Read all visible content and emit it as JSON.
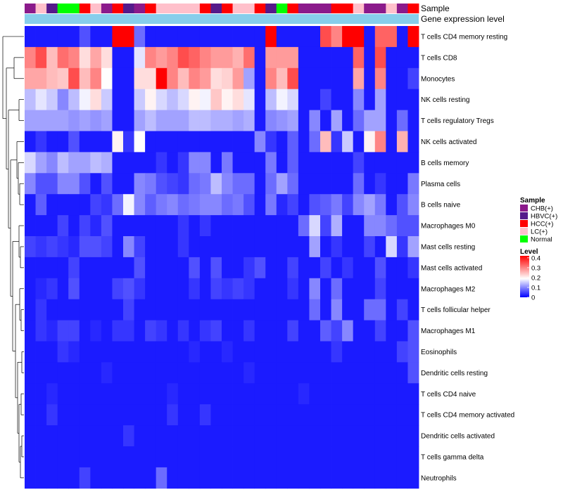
{
  "chart_data": {
    "type": "heatmap",
    "title": "",
    "annotation_rows": [
      "Sample",
      "Gene expression level"
    ],
    "rows": [
      "T cells CD4 memory resting",
      "T cells CD8",
      "Monocytes",
      "NK cells resting",
      "T cells regulatory  Tregs",
      "NK cells activated",
      "B cells memory",
      "Plasma cells",
      "B cells naive",
      "Macrophages M0",
      "Mast cells resting",
      "Mast cells activated",
      "Macrophages M2",
      "T cells follicular helper",
      "Macrophages M1",
      "Eosinophils",
      "Dendritic cells resting",
      "T cells CD4 naive",
      "T cells CD4 memory activated",
      "Dendritic cells activated",
      "T cells gamma delta",
      "Neutrophils"
    ],
    "sample_groups": [
      "CHB(+)",
      "LC(+)",
      "HBVC(+)",
      "Normal",
      "Normal",
      "HCC(+)",
      "LC(+)",
      "CHB(+)",
      "HCC(+)",
      "HBVC(+)",
      "CHB(+)",
      "HCC(+)",
      "LC(+)",
      "LC(+)",
      "LC(+)",
      "LC(+)",
      "HCC(+)",
      "HBVC(+)",
      "HCC(+)",
      "LC(+)",
      "LC(+)",
      "HCC(+)",
      "HBVC(+)",
      "Normal",
      "HCC(+)",
      "CHB(+)",
      "CHB(+)",
      "CHB(+)",
      "HCC(+)",
      "HCC(+)",
      "LC(+)",
      "CHB(+)",
      "CHB(+)",
      "LC(+)",
      "CHB(+)",
      "HCC(+)"
    ],
    "gene_expression_level": "uniform",
    "legend": {
      "sample_title": "Sample",
      "sample_entries": [
        {
          "label": "CHB(+)",
          "color": "#8B1A8B"
        },
        {
          "label": "HBVC(+)",
          "color": "#551A8B"
        },
        {
          "label": "HCC(+)",
          "color": "#FF0000"
        },
        {
          "label": "LC(+)",
          "color": "#FFC0CB"
        },
        {
          "label": "Normal",
          "color": "#00FF00"
        }
      ],
      "level_title": "Level",
      "level_ticks": [
        0.4,
        0.3,
        0.2,
        0.1,
        0
      ],
      "level_range": [
        0,
        0.42
      ]
    },
    "colors": {
      "low": "#0000FF",
      "mid": "#FFFFFF",
      "high": "#FF0000",
      "gene_bar": "#87CEEB",
      "dendrogram": "#000000"
    },
    "values": [
      [
        0.02,
        0.02,
        0.02,
        0.02,
        0.02,
        0.06,
        0.02,
        0.02,
        0.42,
        0.42,
        0.08,
        0.02,
        0.02,
        0.02,
        0.02,
        0.02,
        0.02,
        0.02,
        0.02,
        0.02,
        0.02,
        0.02,
        0.42,
        0.02,
        0.02,
        0.02,
        0.02,
        0.35,
        0.3,
        0.42,
        0.42,
        0.02,
        0.33,
        0.33,
        0.02,
        0.42
      ],
      [
        0.3,
        0.35,
        0.25,
        0.32,
        0.3,
        0.22,
        0.27,
        0.22,
        0.02,
        0.02,
        0.17,
        0.3,
        0.28,
        0.3,
        0.35,
        0.33,
        0.3,
        0.28,
        0.28,
        0.26,
        0.32,
        0.02,
        0.28,
        0.28,
        0.28,
        0.02,
        0.02,
        0.02,
        0.02,
        0.02,
        0.33,
        0.02,
        0.35,
        0.02,
        0.02,
        0.02
      ],
      [
        0.27,
        0.27,
        0.25,
        0.24,
        0.35,
        0.25,
        0.3,
        0.19,
        0.02,
        0.02,
        0.22,
        0.22,
        0.42,
        0.3,
        0.25,
        0.3,
        0.28,
        0.22,
        0.23,
        0.28,
        0.12,
        0.02,
        0.3,
        0.25,
        0.35,
        0.02,
        0.02,
        0.02,
        0.02,
        0.02,
        0.27,
        0.02,
        0.3,
        0.02,
        0.02,
        0.05
      ],
      [
        0.14,
        0.17,
        0.15,
        0.1,
        0.14,
        0.18,
        0.22,
        0.15,
        0.02,
        0.02,
        0.15,
        0.2,
        0.16,
        0.14,
        0.16,
        0.2,
        0.18,
        0.24,
        0.2,
        0.22,
        0.17,
        0.02,
        0.14,
        0.18,
        0.16,
        0.02,
        0.02,
        0.05,
        0.02,
        0.02,
        0.1,
        0.02,
        0.12,
        0.02,
        0.02,
        0.02
      ],
      [
        0.12,
        0.12,
        0.12,
        0.12,
        0.11,
        0.12,
        0.11,
        0.12,
        0.02,
        0.02,
        0.12,
        0.14,
        0.12,
        0.12,
        0.12,
        0.14,
        0.14,
        0.13,
        0.13,
        0.12,
        0.13,
        0.02,
        0.1,
        0.11,
        0.12,
        0.02,
        0.1,
        0.02,
        0.12,
        0.02,
        0.08,
        0.12,
        0.12,
        0.02,
        0.08,
        0.02
      ],
      [
        0.02,
        0.04,
        0.02,
        0.02,
        0.06,
        0.02,
        0.02,
        0.02,
        0.2,
        0.04,
        0.19,
        0.02,
        0.02,
        0.02,
        0.02,
        0.02,
        0.02,
        0.02,
        0.02,
        0.02,
        0.02,
        0.1,
        0.04,
        0.02,
        0.07,
        0.02,
        0.08,
        0.25,
        0.04,
        0.15,
        0.02,
        0.2,
        0.3,
        0.02,
        0.26,
        0.02
      ],
      [
        0.16,
        0.12,
        0.1,
        0.14,
        0.12,
        0.12,
        0.14,
        0.13,
        0.02,
        0.02,
        0.02,
        0.02,
        0.04,
        0.02,
        0.04,
        0.1,
        0.1,
        0.02,
        0.09,
        0.02,
        0.02,
        0.02,
        0.09,
        0.02,
        0.07,
        0.02,
        0.02,
        0.02,
        0.02,
        0.02,
        0.05,
        0.02,
        0.02,
        0.02,
        0.02,
        0.02
      ],
      [
        0.1,
        0.06,
        0.06,
        0.1,
        0.1,
        0.06,
        0.02,
        0.06,
        0.02,
        0.02,
        0.1,
        0.09,
        0.06,
        0.05,
        0.04,
        0.08,
        0.09,
        0.14,
        0.1,
        0.08,
        0.08,
        0.02,
        0.08,
        0.12,
        0.08,
        0.02,
        0.02,
        0.02,
        0.02,
        0.02,
        0.08,
        0.02,
        0.04,
        0.02,
        0.02,
        0.09
      ],
      [
        0.02,
        0.07,
        0.02,
        0.02,
        0.02,
        0.02,
        0.05,
        0.04,
        0.08,
        0.18,
        0.1,
        0.07,
        0.09,
        0.1,
        0.08,
        0.09,
        0.1,
        0.1,
        0.08,
        0.09,
        0.06,
        0.02,
        0.09,
        0.03,
        0.05,
        0.02,
        0.06,
        0.07,
        0.09,
        0.05,
        0.1,
        0.12,
        0.09,
        0.02,
        0.06,
        0.1
      ],
      [
        0.02,
        0.02,
        0.02,
        0.05,
        0.02,
        0.05,
        0.03,
        0.06,
        0.02,
        0.02,
        0.02,
        0.02,
        0.02,
        0.02,
        0.04,
        0.02,
        0.04,
        0.02,
        0.02,
        0.02,
        0.02,
        0.02,
        0.02,
        0.02,
        0.02,
        0.08,
        0.16,
        0.05,
        0.13,
        0.02,
        0.02,
        0.1,
        0.1,
        0.08,
        0.06,
        0.06
      ],
      [
        0.05,
        0.04,
        0.05,
        0.04,
        0.03,
        0.06,
        0.06,
        0.05,
        0.02,
        0.1,
        0.05,
        0.02,
        0.02,
        0.02,
        0.04,
        0.02,
        0.02,
        0.02,
        0.02,
        0.02,
        0.02,
        0.02,
        0.02,
        0.02,
        0.02,
        0.02,
        0.12,
        0.02,
        0.04,
        0.02,
        0.02,
        0.05,
        0.02,
        0.16,
        0.04,
        0.12
      ],
      [
        0.02,
        0.02,
        0.02,
        0.02,
        0.05,
        0.02,
        0.02,
        0.02,
        0.02,
        0.02,
        0.06,
        0.02,
        0.02,
        0.02,
        0.02,
        0.06,
        0.02,
        0.06,
        0.02,
        0.02,
        0.04,
        0.06,
        0.02,
        0.02,
        0.05,
        0.02,
        0.02,
        0.05,
        0.02,
        0.04,
        0.02,
        0.02,
        0.06,
        0.02,
        0.02,
        0.04
      ],
      [
        0.02,
        0.03,
        0.04,
        0.02,
        0.06,
        0.02,
        0.02,
        0.02,
        0.05,
        0.06,
        0.04,
        0.02,
        0.02,
        0.02,
        0.02,
        0.04,
        0.02,
        0.05,
        0.04,
        0.05,
        0.04,
        0.02,
        0.02,
        0.02,
        0.04,
        0.02,
        0.1,
        0.02,
        0.08,
        0.02,
        0.02,
        0.02,
        0.05,
        0.02,
        0.02,
        0.02
      ],
      [
        0.02,
        0.04,
        0.02,
        0.02,
        0.02,
        0.02,
        0.02,
        0.02,
        0.02,
        0.05,
        0.02,
        0.02,
        0.02,
        0.02,
        0.02,
        0.02,
        0.02,
        0.02,
        0.02,
        0.02,
        0.02,
        0.02,
        0.02,
        0.02,
        0.02,
        0.02,
        0.08,
        0.02,
        0.1,
        0.02,
        0.02,
        0.08,
        0.08,
        0.02,
        0.05,
        0.02
      ],
      [
        0.02,
        0.04,
        0.03,
        0.05,
        0.05,
        0.02,
        0.03,
        0.02,
        0.04,
        0.04,
        0.02,
        0.05,
        0.04,
        0.02,
        0.04,
        0.02,
        0.04,
        0.05,
        0.02,
        0.02,
        0.04,
        0.02,
        0.02,
        0.02,
        0.05,
        0.02,
        0.02,
        0.07,
        0.05,
        0.1,
        0.02,
        0.02,
        0.05,
        0.02,
        0.02,
        0.06
      ],
      [
        0.02,
        0.02,
        0.02,
        0.04,
        0.03,
        0.02,
        0.02,
        0.02,
        0.02,
        0.02,
        0.02,
        0.02,
        0.02,
        0.02,
        0.02,
        0.03,
        0.02,
        0.02,
        0.03,
        0.02,
        0.02,
        0.02,
        0.02,
        0.02,
        0.02,
        0.02,
        0.02,
        0.02,
        0.04,
        0.02,
        0.02,
        0.02,
        0.02,
        0.02,
        0.05,
        0.06
      ],
      [
        0.02,
        0.02,
        0.02,
        0.02,
        0.02,
        0.02,
        0.02,
        0.03,
        0.02,
        0.02,
        0.02,
        0.02,
        0.02,
        0.02,
        0.02,
        0.02,
        0.02,
        0.02,
        0.02,
        0.02,
        0.03,
        0.02,
        0.02,
        0.02,
        0.02,
        0.02,
        0.02,
        0.02,
        0.02,
        0.02,
        0.02,
        0.02,
        0.02,
        0.02,
        0.02,
        0.06
      ],
      [
        0.02,
        0.02,
        0.03,
        0.02,
        0.02,
        0.02,
        0.02,
        0.02,
        0.02,
        0.02,
        0.02,
        0.02,
        0.02,
        0.03,
        0.02,
        0.02,
        0.02,
        0.02,
        0.02,
        0.02,
        0.02,
        0.02,
        0.02,
        0.02,
        0.02,
        0.03,
        0.02,
        0.02,
        0.02,
        0.02,
        0.02,
        0.02,
        0.02,
        0.02,
        0.02,
        0.02
      ],
      [
        0.02,
        0.02,
        0.04,
        0.02,
        0.02,
        0.02,
        0.02,
        0.02,
        0.02,
        0.02,
        0.02,
        0.02,
        0.02,
        0.04,
        0.02,
        0.02,
        0.04,
        0.02,
        0.02,
        0.02,
        0.02,
        0.02,
        0.02,
        0.02,
        0.02,
        0.02,
        0.02,
        0.02,
        0.02,
        0.02,
        0.02,
        0.02,
        0.02,
        0.02,
        0.02,
        0.02
      ],
      [
        0.02,
        0.02,
        0.02,
        0.02,
        0.02,
        0.02,
        0.02,
        0.02,
        0.02,
        0.04,
        0.02,
        0.02,
        0.02,
        0.02,
        0.02,
        0.02,
        0.02,
        0.02,
        0.02,
        0.02,
        0.02,
        0.02,
        0.02,
        0.02,
        0.02,
        0.02,
        0.02,
        0.02,
        0.02,
        0.02,
        0.02,
        0.02,
        0.02,
        0.02,
        0.02,
        0.02
      ],
      [
        0.02,
        0.02,
        0.02,
        0.02,
        0.02,
        0.02,
        0.02,
        0.02,
        0.02,
        0.02,
        0.02,
        0.02,
        0.02,
        0.02,
        0.02,
        0.02,
        0.02,
        0.02,
        0.02,
        0.02,
        0.02,
        0.02,
        0.02,
        0.02,
        0.02,
        0.02,
        0.02,
        0.02,
        0.02,
        0.02,
        0.02,
        0.02,
        0.02,
        0.02,
        0.02,
        0.02
      ],
      [
        0.02,
        0.02,
        0.02,
        0.02,
        0.02,
        0.05,
        0.02,
        0.02,
        0.02,
        0.02,
        0.02,
        0.02,
        0.08,
        0.02,
        0.02,
        0.02,
        0.02,
        0.02,
        0.02,
        0.02,
        0.02,
        0.02,
        0.02,
        0.02,
        0.02,
        0.02,
        0.02,
        0.02,
        0.02,
        0.02,
        0.02,
        0.02,
        0.02,
        0.02,
        0.02,
        0.02
      ]
    ]
  }
}
